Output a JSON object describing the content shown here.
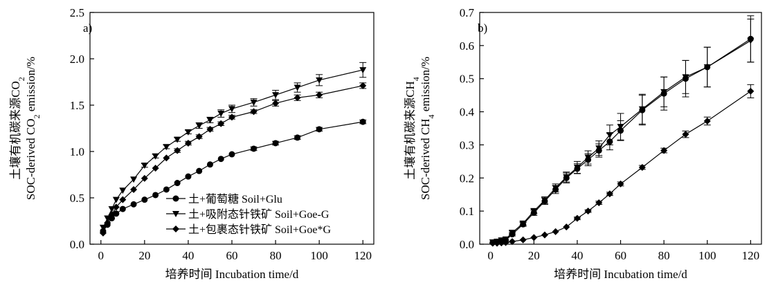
{
  "chart_data": [
    {
      "type": "line",
      "panel_label": "a)",
      "xlabel": "培养时间 Incubation time/d",
      "ylabel_line1": "土壤有机碳来源CO",
      "ylabel_line1_sub": "2",
      "ylabel_line2_pre": "SOC-derived CO",
      "ylabel_line2_sub": "2",
      "ylabel_line2_post": " emission/%",
      "xlim": [
        -5,
        125
      ],
      "ylim": [
        0,
        2.5
      ],
      "xticks": [
        0,
        20,
        40,
        60,
        80,
        100,
        120
      ],
      "yticks": [
        0.0,
        0.5,
        1.0,
        1.5,
        2.0,
        2.5
      ],
      "ytick_labels": [
        "0.0",
        "0.5",
        "1.0",
        "1.5",
        "2.0",
        "2.5"
      ],
      "legend_position": "bottom-right",
      "series": [
        {
          "name": "土+葡萄糖 Soil+Glu",
          "marker": "circle",
          "points": [
            [
              1,
              0.14
            ],
            [
              3,
              0.21
            ],
            [
              5,
              0.28
            ],
            [
              7,
              0.33
            ],
            [
              10,
              0.38
            ],
            [
              15,
              0.43
            ],
            [
              20,
              0.48
            ],
            [
              25,
              0.53
            ],
            [
              30,
              0.59
            ],
            [
              35,
              0.66
            ],
            [
              40,
              0.73
            ],
            [
              45,
              0.79
            ],
            [
              50,
              0.86
            ],
            [
              55,
              0.92
            ],
            [
              60,
              0.97
            ],
            [
              70,
              1.03
            ],
            [
              80,
              1.09
            ],
            [
              90,
              1.15
            ],
            [
              100,
              1.24
            ],
            [
              120,
              1.32
            ]
          ],
          "errors": [
            0.01,
            0.01,
            0.01,
            0.01,
            0.01,
            0.01,
            0.01,
            0.01,
            0.01,
            0.01,
            0.01,
            0.01,
            0.01,
            0.01,
            0.01,
            0.02,
            0.02,
            0.02,
            0.02,
            0.02
          ]
        },
        {
          "name": "土+吸附态针铁矿 Soil+Goe-G",
          "marker": "triangle-down",
          "points": [
            [
              1,
              0.18
            ],
            [
              3,
              0.28
            ],
            [
              5,
              0.38
            ],
            [
              7,
              0.48
            ],
            [
              10,
              0.58
            ],
            [
              15,
              0.7
            ],
            [
              20,
              0.85
            ],
            [
              25,
              0.95
            ],
            [
              30,
              1.05
            ],
            [
              35,
              1.13
            ],
            [
              40,
              1.21
            ],
            [
              45,
              1.28
            ],
            [
              50,
              1.34
            ],
            [
              55,
              1.41
            ],
            [
              60,
              1.46
            ],
            [
              70,
              1.53
            ],
            [
              80,
              1.61
            ],
            [
              90,
              1.69
            ],
            [
              100,
              1.77
            ],
            [
              120,
              1.88
            ]
          ],
          "errors": [
            0.01,
            0.01,
            0.01,
            0.01,
            0.01,
            0.01,
            0.02,
            0.02,
            0.02,
            0.02,
            0.02,
            0.03,
            0.03,
            0.04,
            0.04,
            0.04,
            0.05,
            0.05,
            0.06,
            0.08
          ]
        },
        {
          "name": "土+包裹态针铁矿 Soil+Goe*G",
          "marker": "diamond",
          "points": [
            [
              1,
              0.12
            ],
            [
              3,
              0.23
            ],
            [
              5,
              0.32
            ],
            [
              7,
              0.4
            ],
            [
              10,
              0.48
            ],
            [
              15,
              0.59
            ],
            [
              20,
              0.71
            ],
            [
              25,
              0.82
            ],
            [
              30,
              0.93
            ],
            [
              35,
              1.01
            ],
            [
              40,
              1.09
            ],
            [
              45,
              1.16
            ],
            [
              50,
              1.24
            ],
            [
              55,
              1.3
            ],
            [
              60,
              1.37
            ],
            [
              70,
              1.43
            ],
            [
              80,
              1.52
            ],
            [
              90,
              1.58
            ],
            [
              100,
              1.61
            ],
            [
              120,
              1.71
            ]
          ],
          "errors": [
            0.01,
            0.01,
            0.01,
            0.01,
            0.01,
            0.01,
            0.01,
            0.01,
            0.01,
            0.02,
            0.02,
            0.02,
            0.02,
            0.02,
            0.02,
            0.02,
            0.03,
            0.03,
            0.03,
            0.03
          ]
        }
      ]
    },
    {
      "type": "line",
      "panel_label": "b)",
      "xlabel": "培养时间 Incubation time/d",
      "ylabel_line1": "土壤有机碳来源CH",
      "ylabel_line1_sub": "4",
      "ylabel_line2_pre": "SOC-derived CH",
      "ylabel_line2_sub": "4",
      "ylabel_line2_post": " emission/%",
      "xlim": [
        -5,
        125
      ],
      "ylim": [
        0,
        0.7
      ],
      "xticks": [
        0,
        20,
        40,
        60,
        80,
        100,
        120
      ],
      "yticks": [
        0.0,
        0.1,
        0.2,
        0.3,
        0.4,
        0.5,
        0.6,
        0.7
      ],
      "ytick_labels": [
        "0.0",
        "0.1",
        "0.2",
        "0.3",
        "0.4",
        "0.5",
        "0.6",
        "0.7"
      ],
      "legend_position": "none",
      "series": [
        {
          "name": "土+葡萄糖 Soil+Glu",
          "marker": "circle",
          "points": [
            [
              1,
              0.005
            ],
            [
              3,
              0.007
            ],
            [
              5,
              0.01
            ],
            [
              7,
              0.012
            ],
            [
              10,
              0.03
            ],
            [
              15,
              0.06
            ],
            [
              20,
              0.095
            ],
            [
              25,
              0.13
            ],
            [
              30,
              0.165
            ],
            [
              35,
              0.2
            ],
            [
              40,
              0.228
            ],
            [
              45,
              0.255
            ],
            [
              50,
              0.283
            ],
            [
              55,
              0.31
            ],
            [
              60,
              0.343
            ],
            [
              70,
              0.405
            ],
            [
              80,
              0.455
            ],
            [
              90,
              0.5
            ],
            [
              100,
              0.535
            ],
            [
              120,
              0.62
            ]
          ],
          "errors": [
            0.002,
            0.002,
            0.002,
            0.002,
            0.005,
            0.006,
            0.008,
            0.01,
            0.012,
            0.015,
            0.015,
            0.018,
            0.02,
            0.025,
            0.03,
            0.045,
            0.05,
            0.055,
            0.06,
            0.07
          ]
        },
        {
          "name": "土+吸附态针铁矿 Soil+Goe-G",
          "marker": "triangle-down",
          "points": [
            [
              1,
              0.006
            ],
            [
              3,
              0.008
            ],
            [
              5,
              0.012
            ],
            [
              7,
              0.015
            ],
            [
              10,
              0.035
            ],
            [
              15,
              0.063
            ],
            [
              20,
              0.1
            ],
            [
              25,
              0.133
            ],
            [
              30,
              0.17
            ],
            [
              35,
              0.203
            ],
            [
              40,
              0.232
            ],
            [
              45,
              0.262
            ],
            [
              50,
              0.29
            ],
            [
              55,
              0.33
            ],
            [
              60,
              0.355
            ],
            [
              70,
              0.408
            ],
            [
              80,
              0.46
            ],
            [
              90,
              0.505
            ],
            [
              100,
              0.535
            ],
            [
              120,
              0.615
            ]
          ],
          "errors": [
            0.002,
            0.002,
            0.002,
            0.003,
            0.005,
            0.006,
            0.008,
            0.01,
            0.012,
            0.015,
            0.018,
            0.02,
            0.022,
            0.03,
            0.04,
            0.045,
            0.045,
            0.05,
            0.06,
            0.065
          ]
        },
        {
          "name": "土+包裹态针铁矿 Soil+Goe*G",
          "marker": "diamond",
          "points": [
            [
              1,
              0.003
            ],
            [
              3,
              0.003
            ],
            [
              5,
              0.004
            ],
            [
              7,
              0.005
            ],
            [
              10,
              0.008
            ],
            [
              15,
              0.013
            ],
            [
              20,
              0.02
            ],
            [
              25,
              0.028
            ],
            [
              30,
              0.038
            ],
            [
              35,
              0.052
            ],
            [
              40,
              0.078
            ],
            [
              45,
              0.1
            ],
            [
              50,
              0.125
            ],
            [
              55,
              0.152
            ],
            [
              60,
              0.182
            ],
            [
              70,
              0.232
            ],
            [
              80,
              0.283
            ],
            [
              90,
              0.332
            ],
            [
              100,
              0.372
            ],
            [
              120,
              0.462
            ]
          ],
          "errors": [
            0.001,
            0.001,
            0.001,
            0.001,
            0.001,
            0.002,
            0.002,
            0.002,
            0.003,
            0.003,
            0.004,
            0.004,
            0.005,
            0.005,
            0.006,
            0.006,
            0.007,
            0.01,
            0.012,
            0.02
          ]
        }
      ]
    }
  ]
}
